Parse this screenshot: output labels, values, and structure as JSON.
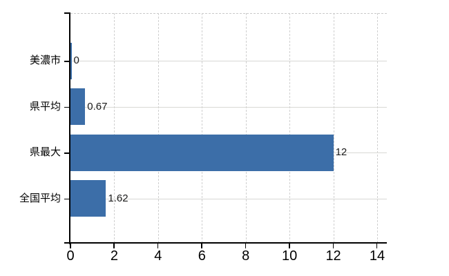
{
  "chart_data": {
    "type": "bar",
    "orientation": "horizontal",
    "title": "",
    "xlabel": "",
    "ylabel": "",
    "categories": [
      "美濃市",
      "県平均",
      "県最大",
      "全国平均"
    ],
    "values": [
      0,
      0.67,
      12,
      1.62
    ],
    "value_labels": [
      "0",
      "0.67",
      "12",
      "1.62"
    ],
    "x_ticks": [
      0,
      2,
      4,
      6,
      8,
      10,
      12,
      14
    ],
    "x_tick_labels": [
      "0",
      "2",
      "4",
      "6",
      "8",
      "10",
      "12",
      "14"
    ],
    "xlim": [
      0,
      14.45
    ],
    "legend": "none",
    "grid": {
      "horizontal_style": "solid",
      "vertical_style": "dashed",
      "top_border_style": "dashed"
    },
    "colors": {
      "bar": "#3C6EA8",
      "horizontal_gridline": "#d8d8d4",
      "vertical_gridline": "#cfcfcf",
      "axis": "#000000",
      "text": "#000000",
      "background": "#ffffff"
    }
  }
}
